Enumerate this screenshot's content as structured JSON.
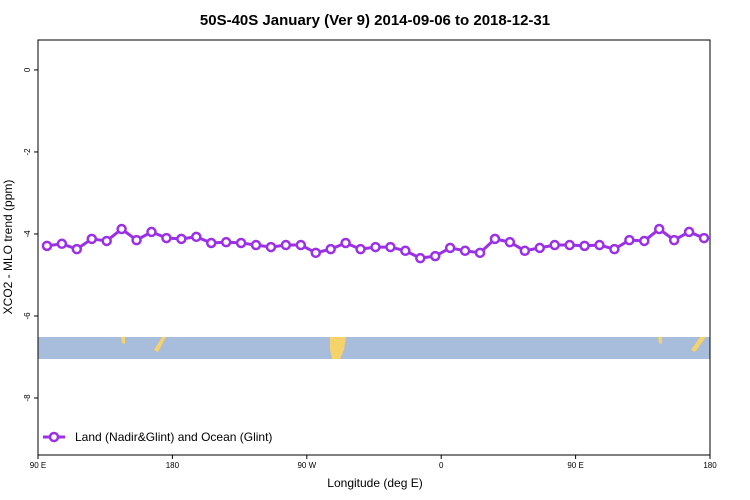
{
  "chart_data": {
    "type": "line",
    "title": "50S-40S January (Ver 9)   2014-09-06 to 2018-12-31",
    "x_label": "Longitude (deg E)",
    "y_label": "XCO2 - MLO trend (ppm)",
    "x": [
      96,
      106,
      116,
      126,
      136,
      146,
      156,
      166,
      176,
      186,
      196,
      206,
      216,
      226,
      236,
      246,
      256,
      266,
      276,
      286,
      296,
      306,
      316,
      326,
      336,
      346,
      356,
      366,
      376,
      386,
      396,
      406,
      416,
      426,
      436,
      446,
      456,
      466,
      476,
      486,
      496,
      506,
      516,
      526,
      536
    ],
    "series": [
      {
        "name": "Land (Nadir&Glint) and Ocean (Glint)",
        "color": "#9b30e6",
        "values": [
          -4.29,
          -4.24,
          -4.37,
          -4.12,
          -4.17,
          -3.88,
          -4.15,
          -3.95,
          -4.1,
          -4.12,
          -4.07,
          -4.22,
          -4.2,
          -4.22,
          -4.27,
          -4.32,
          -4.27,
          -4.27,
          -4.46,
          -4.37,
          -4.22,
          -4.37,
          -4.32,
          -4.32,
          -4.41,
          -4.59,
          -4.54,
          -4.34,
          -4.41,
          -4.46,
          -4.12,
          -4.2,
          -4.41,
          -4.34,
          -4.27,
          -4.27,
          -4.29,
          -4.27,
          -4.37,
          -4.15,
          -4.17,
          -3.88,
          -4.15,
          -3.95,
          -4.1
        ]
      }
    ],
    "xlim": [
      90,
      540
    ],
    "xticks": [
      {
        "value": 90,
        "label": "90 E"
      },
      180,
      {
        "value": 270,
        "label": "90 W"
      },
      {
        "value": 360,
        "label": "0"
      },
      {
        "value": 450,
        "label": "90 E"
      },
      {
        "value": 540,
        "label": "180"
      }
    ],
    "ylim": [
      -9.39,
      0.73
    ],
    "yticks": [
      0,
      -2,
      -4,
      -6,
      -8
    ],
    "legend": "bottom-left"
  }
}
